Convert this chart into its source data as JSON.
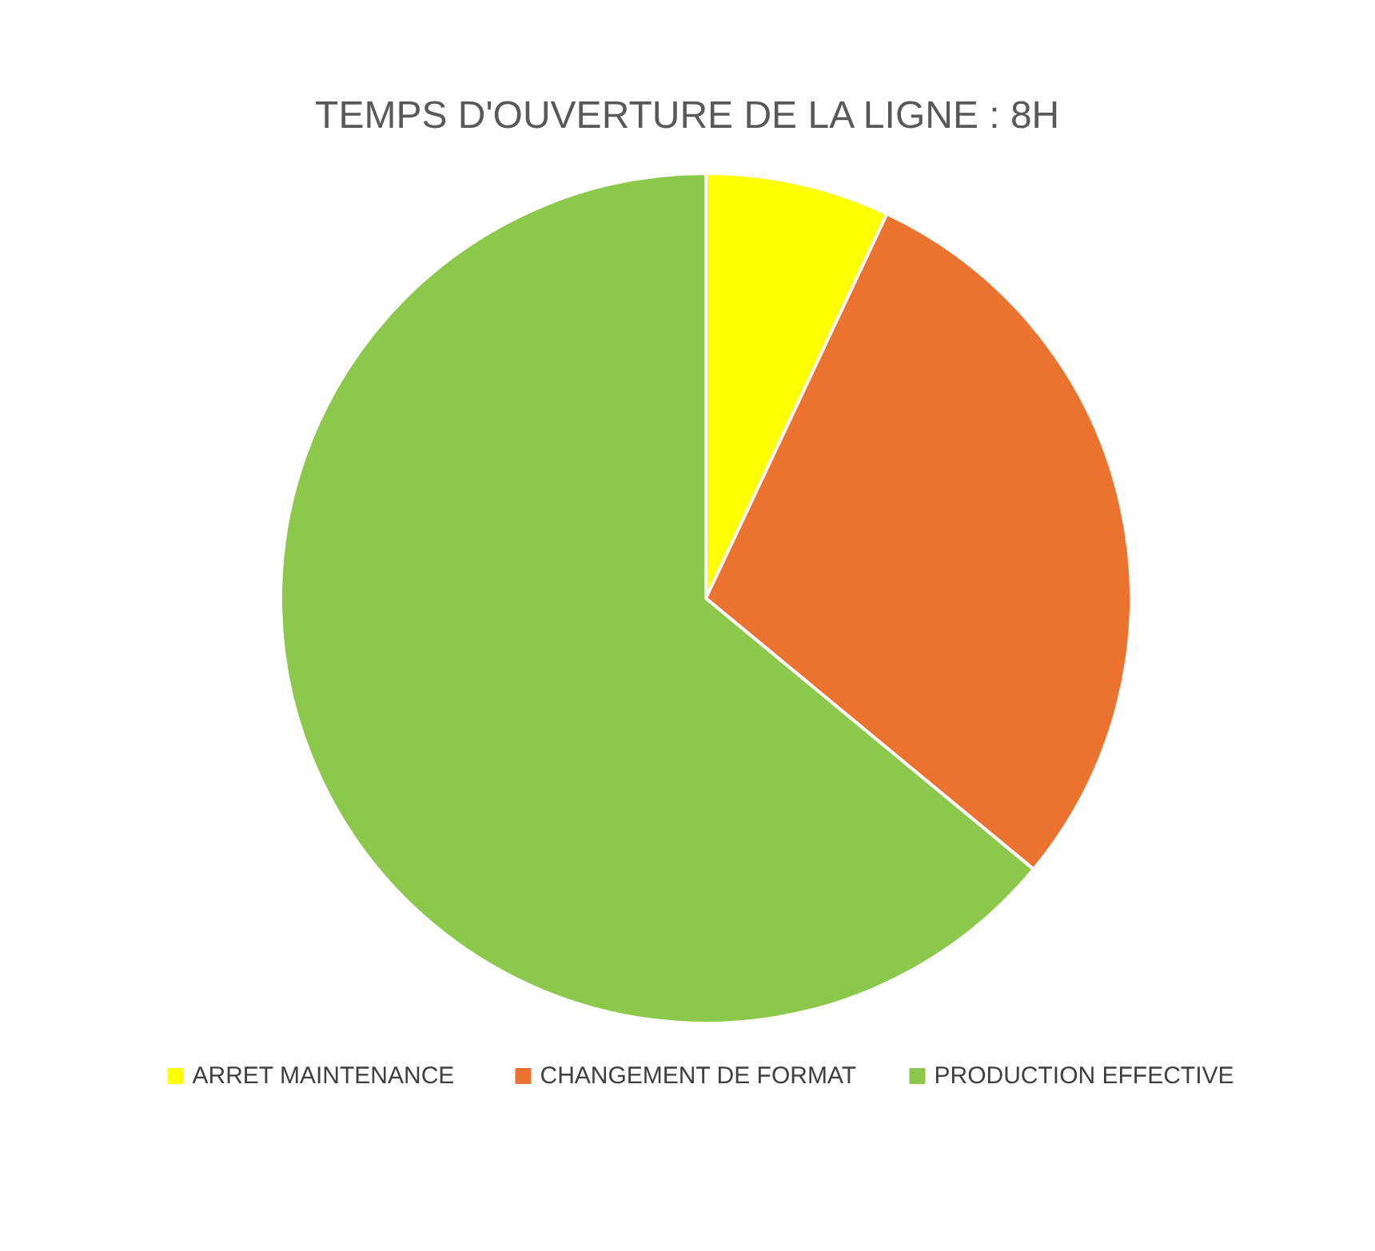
{
  "chart_data": {
    "type": "pie",
    "title": "TEMPS D'OUVERTURE DE LA LIGNE : 8H",
    "categories": [
      "ARRET MAINTENANCE",
      "CHANGEMENT DE FORMAT",
      "PRODUCTION EFFECTIVE"
    ],
    "values": [
      7,
      29,
      64
    ],
    "colors": [
      "#ffff00",
      "#ec7230",
      "#8cc84b"
    ],
    "legend": "bottom"
  }
}
